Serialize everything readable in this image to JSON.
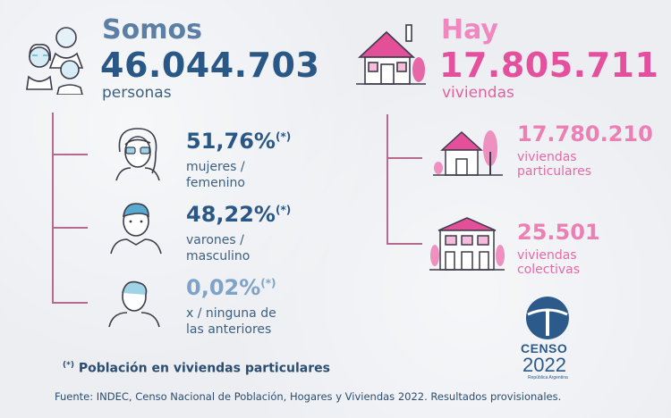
{
  "left": {
    "title": "Somos",
    "total": "46.044.703",
    "unit": "personas",
    "items": [
      {
        "pct": "51,76%",
        "mark": "(*)",
        "label_l1": "mujeres /",
        "label_l2": "femenino"
      },
      {
        "pct": "48,22%",
        "mark": "(*)",
        "label_l1": "varones /",
        "label_l2": "masculino"
      },
      {
        "pct": "0,02%",
        "mark": "(*)",
        "label_l1": "x / ninguna de",
        "label_l2": "las anteriores"
      }
    ]
  },
  "right": {
    "title": "Hay",
    "total": "17.805.711",
    "unit": "viviendas",
    "items": [
      {
        "num": "17.780.210",
        "label_l1": "viviendas",
        "label_l2": "particulares"
      },
      {
        "num": "25.501",
        "label_l1": "viviendas",
        "label_l2": "colectivas"
      }
    ]
  },
  "note": {
    "mark": "(*)",
    "text": "Población en viviendas particulares"
  },
  "source": "Fuente: INDEC, Censo Nacional de Población, Hogares y Viviendas 2022. Resultados provisionales.",
  "logo": {
    "line1": "CENSO",
    "line2": "2022",
    "line3": "República Argentina"
  },
  "colors": {
    "blue": "#2a5886",
    "pink": "#e4509d",
    "line": "#b46b8f"
  }
}
